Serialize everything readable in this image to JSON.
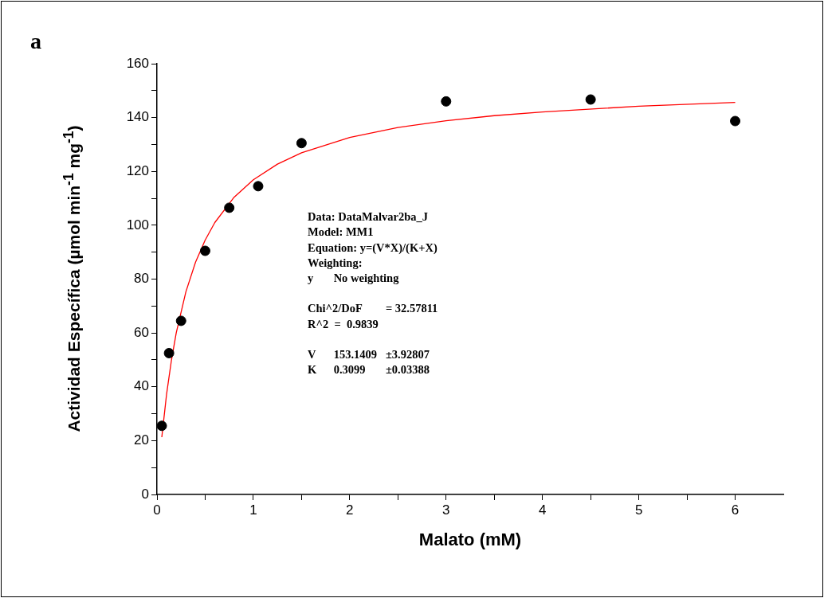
{
  "chart_data": {
    "type": "scatter",
    "xlabel": "Malato (mM)",
    "ylabel": "Actividad Específica (µmol min$^{-1}$ mg$^{-1}$)",
    "xlim": [
      0,
      6.5
    ],
    "ylim": [
      0,
      160
    ],
    "xticks": [
      0,
      {
        "value": 0.5,
        "label": null
      },
      1,
      {
        "value": 1.5,
        "label": null
      },
      2,
      {
        "value": 2.5,
        "label": null
      },
      3,
      {
        "value": 3.5,
        "label": null
      },
      4,
      {
        "value": 4.5,
        "label": null
      },
      5,
      {
        "value": 5.5,
        "label": null
      },
      6
    ],
    "yticks": [
      0,
      {
        "value": 10,
        "label": null
      },
      20,
      {
        "value": 30,
        "label": null
      },
      40,
      {
        "value": 50,
        "label": null
      },
      60,
      {
        "value": 70,
        "label": null
      },
      80,
      {
        "value": 90,
        "label": null
      },
      100,
      {
        "value": 110,
        "label": null
      },
      120,
      {
        "value": 130,
        "label": null
      },
      140,
      {
        "value": 150,
        "label": null
      },
      160
    ],
    "grid": false,
    "legend": false,
    "marker": "circle",
    "series": [
      {
        "color": "#000000",
        "x": [
          0.05,
          0.125,
          0.25,
          0.5,
          0.75,
          1.05,
          1.5,
          3,
          4.5,
          6
        ],
        "values": [
          25.5,
          52.5,
          64.5,
          90.5,
          106.5,
          114.5,
          130.5,
          146,
          146.7,
          138.7
        ]
      },
      {
        "type": "line",
        "color": "#ff0000",
        "marker": "none",
        "x": [
          0.05,
          0.1,
          0.15,
          0.2,
          0.3,
          0.4,
          0.5,
          0.6,
          0.8,
          1,
          1.25,
          1.5,
          2,
          2.5,
          3,
          3.5,
          4,
          5,
          6
        ],
        "values": [
          21.3,
          37.4,
          49.9,
          60.1,
          75.3,
          86.3,
          94.5,
          101.0,
          110.4,
          116.9,
          122.7,
          126.9,
          132.6,
          136.3,
          138.8,
          140.7,
          142.1,
          144.2,
          145.6
        ]
      }
    ],
    "annotations": [
      "a",
      "Data: DataMalvar2ba_J\nModel: MM1\nEquation: y=(V*X)/(K+X)\nWeighting:\ny\tNo weighting",
      "Chi^2/DoF\t= 32.57811\nR^2  =  0.9839",
      "V\t153.1409\t±3.92807\nK\t0.3099\t±0.03388"
    ]
  }
}
